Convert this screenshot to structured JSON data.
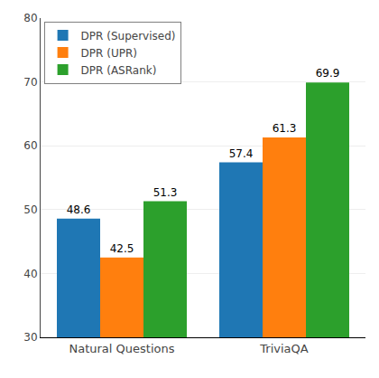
{
  "chart_data": {
    "type": "bar",
    "categories": [
      "Natural Questions",
      "TriviaQA"
    ],
    "series": [
      {
        "name": "DPR (Supervised)",
        "color": "#1f77b4",
        "values": [
          48.6,
          57.4
        ]
      },
      {
        "name": "DPR (UPR)",
        "color": "#ff7f0e",
        "values": [
          42.5,
          61.3
        ]
      },
      {
        "name": "DPR (ASRank)",
        "color": "#2ca02c",
        "values": [
          51.3,
          69.9
        ]
      }
    ],
    "ylim": [
      30,
      80
    ],
    "yticks": [
      30,
      40,
      50,
      60,
      70,
      80
    ],
    "grid": true,
    "legend": "upper left",
    "data_labels": true
  }
}
